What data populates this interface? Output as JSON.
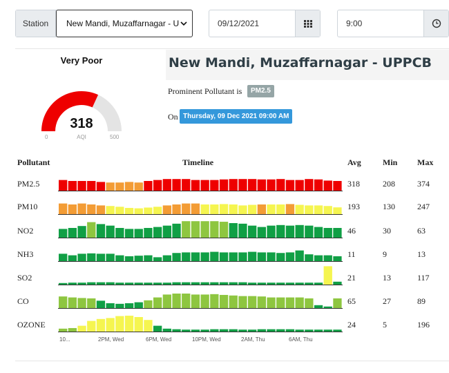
{
  "controls": {
    "station_label": "Station",
    "station_value": "New Mandi, Muzaffarnagar - UP",
    "date_value": "09/12/2021",
    "time_value": "9:00"
  },
  "gauge": {
    "category": "Very Poor",
    "value": 318,
    "value_text": "318",
    "min_text": "0",
    "unit_text": "AQI",
    "max_text": "500",
    "scale_max": 500,
    "color": "#ee0000",
    "track_color": "#e4e4e4"
  },
  "station": {
    "title": "New Mandi, Muzaffarnagar - UPPCB",
    "prominent_label": "Prominent Pollutant is",
    "prominent_pollutant": "PM2.5",
    "on_label": "On",
    "datetime": "Thursday, 09 Dec 2021 09:00 AM"
  },
  "table": {
    "headers": {
      "pollutant": "Pollutant",
      "timeline": "Timeline",
      "avg": "Avg",
      "min": "Min",
      "max": "Max"
    },
    "rows": [
      {
        "name": "PM2.5",
        "avg": "318",
        "min": "208",
        "max": "374",
        "bars": [
          0.55,
          0.5,
          0.5,
          0.5,
          0.45,
          0.42,
          0.42,
          0.45,
          0.42,
          0.5,
          0.55,
          0.6,
          0.6,
          0.6,
          0.55,
          0.55,
          0.55,
          0.58,
          0.6,
          0.6,
          0.6,
          0.58,
          0.58,
          0.6,
          0.55,
          0.55,
          0.6,
          0.58,
          0.52,
          0.5
        ],
        "colors": [
          "#ee0000",
          "#ee0000",
          "#ee0000",
          "#ee0000",
          "#ee0000",
          "#f39c35",
          "#f39c35",
          "#f39c35",
          "#f39c35",
          "#ee0000",
          "#ee0000",
          "#ee0000",
          "#ee0000",
          "#ee0000",
          "#ee0000",
          "#ee0000",
          "#ee0000",
          "#ee0000",
          "#ee0000",
          "#ee0000",
          "#ee0000",
          "#ee0000",
          "#ee0000",
          "#ee0000",
          "#ee0000",
          "#ee0000",
          "#ee0000",
          "#ee0000",
          "#ee0000",
          "#ee0000"
        ]
      },
      {
        "name": "PM10",
        "avg": "193",
        "min": "130",
        "max": "247",
        "bars": [
          0.55,
          0.5,
          0.55,
          0.5,
          0.45,
          0.42,
          0.38,
          0.32,
          0.3,
          0.34,
          0.38,
          0.45,
          0.5,
          0.55,
          0.55,
          0.5,
          0.5,
          0.52,
          0.5,
          0.45,
          0.48,
          0.5,
          0.5,
          0.5,
          0.52,
          0.48,
          0.45,
          0.45,
          0.42,
          0.35
        ],
        "colors": [
          "#f39c35",
          "#f39c35",
          "#f39c35",
          "#f39c35",
          "#f39c35",
          "#f5f550",
          "#f5f550",
          "#f5f550",
          "#f5f550",
          "#f5f550",
          "#f5f550",
          "#f39c35",
          "#f39c35",
          "#f39c35",
          "#f39c35",
          "#f5f550",
          "#f5f550",
          "#f5f550",
          "#f5f550",
          "#f5f550",
          "#f5f550",
          "#f39c35",
          "#f5f550",
          "#f5f550",
          "#f39c35",
          "#f5f550",
          "#f5f550",
          "#f5f550",
          "#f5f550",
          "#f5f550"
        ]
      },
      {
        "name": "NO2",
        "avg": "46",
        "min": "30",
        "max": "63",
        "bars": [
          0.45,
          0.5,
          0.6,
          0.8,
          0.7,
          0.62,
          0.5,
          0.45,
          0.45,
          0.5,
          0.55,
          0.62,
          0.72,
          0.85,
          0.85,
          0.85,
          0.85,
          0.82,
          0.75,
          0.72,
          0.62,
          0.55,
          0.62,
          0.65,
          0.62,
          0.65,
          0.62,
          0.55,
          0.5,
          0.5
        ],
        "colors": [
          "#109f45",
          "#109f45",
          "#109f45",
          "#8ec640",
          "#109f45",
          "#109f45",
          "#109f45",
          "#109f45",
          "#109f45",
          "#109f45",
          "#109f45",
          "#109f45",
          "#109f45",
          "#8ec640",
          "#8ec640",
          "#8ec640",
          "#8ec640",
          "#8ec640",
          "#109f45",
          "#109f45",
          "#109f45",
          "#109f45",
          "#109f45",
          "#109f45",
          "#109f45",
          "#109f45",
          "#109f45",
          "#109f45",
          "#109f45",
          "#109f45"
        ]
      },
      {
        "name": "NH3",
        "avg": "11",
        "min": "9",
        "max": "13",
        "bars": [
          0.38,
          0.3,
          0.38,
          0.4,
          0.38,
          0.38,
          0.3,
          0.25,
          0.28,
          0.3,
          0.2,
          0.3,
          0.42,
          0.45,
          0.45,
          0.45,
          0.48,
          0.45,
          0.45,
          0.45,
          0.48,
          0.45,
          0.45,
          0.42,
          0.45,
          0.55,
          0.35,
          0.3,
          0.3,
          0.25
        ],
        "colors": [
          "#109f45",
          "#109f45",
          "#109f45",
          "#109f45",
          "#109f45",
          "#109f45",
          "#109f45",
          "#109f45",
          "#109f45",
          "#109f45",
          "#109f45",
          "#109f45",
          "#109f45",
          "#109f45",
          "#109f45",
          "#109f45",
          "#109f45",
          "#109f45",
          "#109f45",
          "#109f45",
          "#109f45",
          "#109f45",
          "#109f45",
          "#109f45",
          "#109f45",
          "#109f45",
          "#109f45",
          "#109f45",
          "#109f45",
          "#109f45"
        ]
      },
      {
        "name": "SO2",
        "avg": "21",
        "min": "13",
        "max": "117",
        "bars": [
          0.08,
          0.1,
          0.1,
          0.12,
          0.12,
          0.12,
          0.1,
          0.1,
          0.1,
          0.1,
          0.1,
          0.1,
          0.12,
          0.12,
          0.12,
          0.12,
          0.12,
          0.12,
          0.12,
          0.12,
          0.1,
          0.1,
          0.1,
          0.1,
          0.1,
          0.1,
          0.1,
          0.1,
          0.95,
          0.15
        ],
        "colors": [
          "#109f45",
          "#109f45",
          "#109f45",
          "#109f45",
          "#109f45",
          "#109f45",
          "#109f45",
          "#109f45",
          "#109f45",
          "#109f45",
          "#109f45",
          "#109f45",
          "#109f45",
          "#109f45",
          "#109f45",
          "#109f45",
          "#109f45",
          "#109f45",
          "#109f45",
          "#109f45",
          "#109f45",
          "#109f45",
          "#109f45",
          "#109f45",
          "#109f45",
          "#109f45",
          "#109f45",
          "#109f45",
          "#f5f550",
          "#109f45"
        ]
      },
      {
        "name": "CO",
        "avg": "65",
        "min": "27",
        "max": "89",
        "bars": [
          0.6,
          0.55,
          0.52,
          0.5,
          0.38,
          0.25,
          0.22,
          0.25,
          0.3,
          0.4,
          0.55,
          0.7,
          0.75,
          0.75,
          0.7,
          0.7,
          0.72,
          0.68,
          0.65,
          0.62,
          0.62,
          0.6,
          0.55,
          0.55,
          0.55,
          0.55,
          0.5,
          0.15,
          0.08,
          0.5
        ],
        "colors": [
          "#8ec640",
          "#8ec640",
          "#8ec640",
          "#8ec640",
          "#109f45",
          "#109f45",
          "#109f45",
          "#109f45",
          "#109f45",
          "#8ec640",
          "#8ec640",
          "#8ec640",
          "#8ec640",
          "#8ec640",
          "#8ec640",
          "#8ec640",
          "#8ec640",
          "#8ec640",
          "#8ec640",
          "#8ec640",
          "#8ec640",
          "#8ec640",
          "#8ec640",
          "#8ec640",
          "#8ec640",
          "#8ec640",
          "#8ec640",
          "#109f45",
          "#109f45",
          "#8ec640"
        ]
      },
      {
        "name": "OZONE",
        "avg": "24",
        "min": "5",
        "max": "196",
        "bars": [
          0.15,
          0.18,
          0.3,
          0.55,
          0.65,
          0.7,
          0.8,
          0.82,
          0.75,
          0.6,
          0.3,
          0.15,
          0.12,
          0.1,
          0.1,
          0.1,
          0.12,
          0.12,
          0.12,
          0.1,
          0.1,
          0.12,
          0.12,
          0.12,
          0.12,
          0.1,
          0.1,
          0.1,
          0.1,
          0.1
        ],
        "colors": [
          "#8ec640",
          "#8ec640",
          "#f5f550",
          "#f5f550",
          "#f5f550",
          "#f5f550",
          "#f5f550",
          "#f5f550",
          "#f5f550",
          "#f5f550",
          "#109f45",
          "#109f45",
          "#109f45",
          "#109f45",
          "#109f45",
          "#109f45",
          "#109f45",
          "#109f45",
          "#109f45",
          "#109f45",
          "#109f45",
          "#109f45",
          "#109f45",
          "#109f45",
          "#109f45",
          "#109f45",
          "#109f45",
          "#109f45",
          "#109f45",
          "#109f45"
        ]
      }
    ],
    "x_ticks": [
      "10...",
      "2PM, Wed",
      "6PM, Wed",
      "10PM, Wed",
      "2AM, Thu",
      "6AM, Thu"
    ]
  },
  "icons": {
    "station_select": "chevron-down-icon",
    "date_picker": "calendar-icon",
    "time_picker": "clock-icon"
  }
}
